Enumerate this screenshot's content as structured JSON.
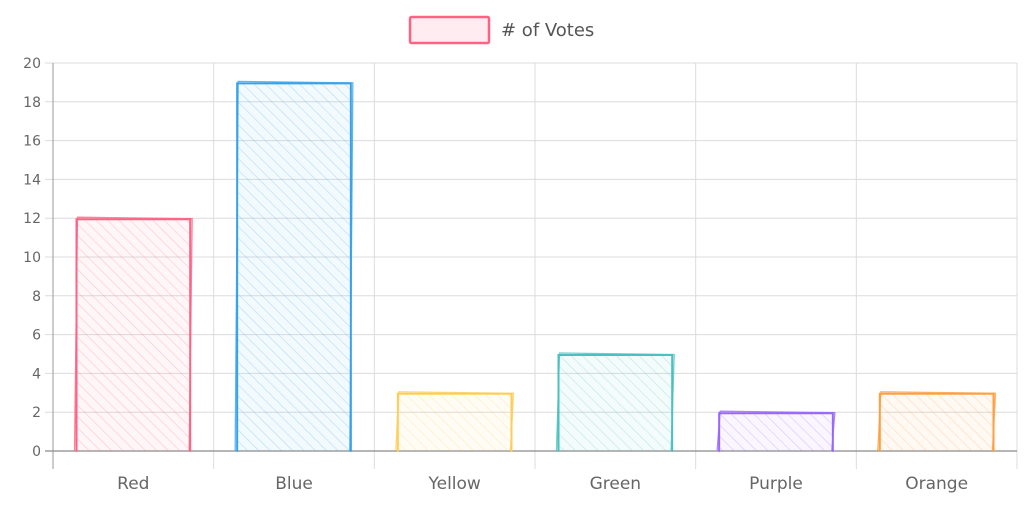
{
  "chart_data": {
    "type": "bar",
    "categories": [
      "Red",
      "Blue",
      "Yellow",
      "Green",
      "Purple",
      "Orange"
    ],
    "series": [
      {
        "name": "# of Votes",
        "values": [
          12,
          19,
          3,
          5,
          2,
          3
        ]
      }
    ],
    "bar_colors": [
      "#ff6384",
      "#36a2eb",
      "#ffcd56",
      "#4bc0c0",
      "#9966ff",
      "#ff9f40"
    ],
    "legend_color": "#ff6384",
    "ylim": [
      0,
      20
    ],
    "yticks": [
      0,
      2,
      4,
      6,
      8,
      10,
      12,
      14,
      16,
      18,
      20
    ],
    "grid": true,
    "legend_position": "top",
    "style": "hand-drawn hatched"
  }
}
